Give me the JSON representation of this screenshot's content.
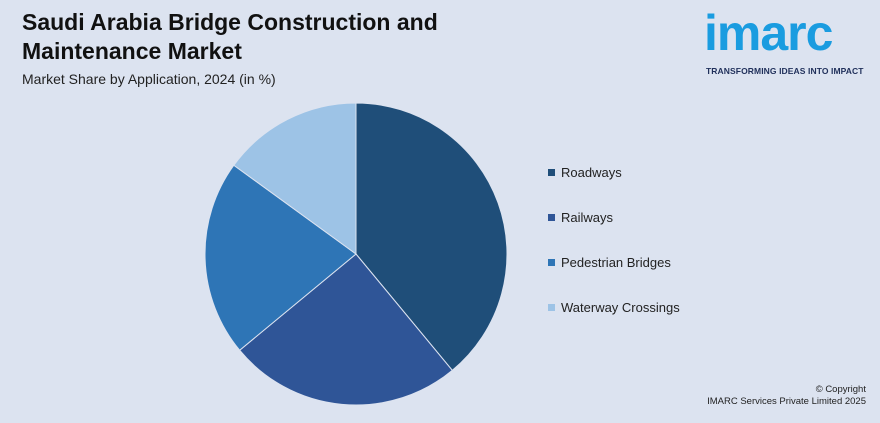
{
  "header": {
    "title": "Saudi Arabia Bridge Construction and Maintenance Market",
    "subtitle": "Market Share by Application, 2024 (in %)"
  },
  "logo": {
    "word": "imarc",
    "tagline": "TRANSFORMING IDEAS INTO IMPACT",
    "color": "#1a9ce0"
  },
  "chart_data": {
    "type": "pie",
    "title": "Saudi Arabia Bridge Construction and Maintenance Market",
    "subtitle": "Market Share by Application, 2024 (in %)",
    "legend_position": "right",
    "slices": [
      {
        "label": "Roadways",
        "value": 39,
        "color": "#1f4e79"
      },
      {
        "label": "Railways",
        "value": 25,
        "color": "#2f5597"
      },
      {
        "label": "Pedestrian Bridges",
        "value": 21,
        "color": "#2e75b6"
      },
      {
        "label": "Waterway Crossings",
        "value": 15,
        "color": "#9dc3e6"
      }
    ]
  },
  "footer": {
    "copyright": "© Copyright",
    "company": "IMARC Services Private Limited 2025"
  }
}
